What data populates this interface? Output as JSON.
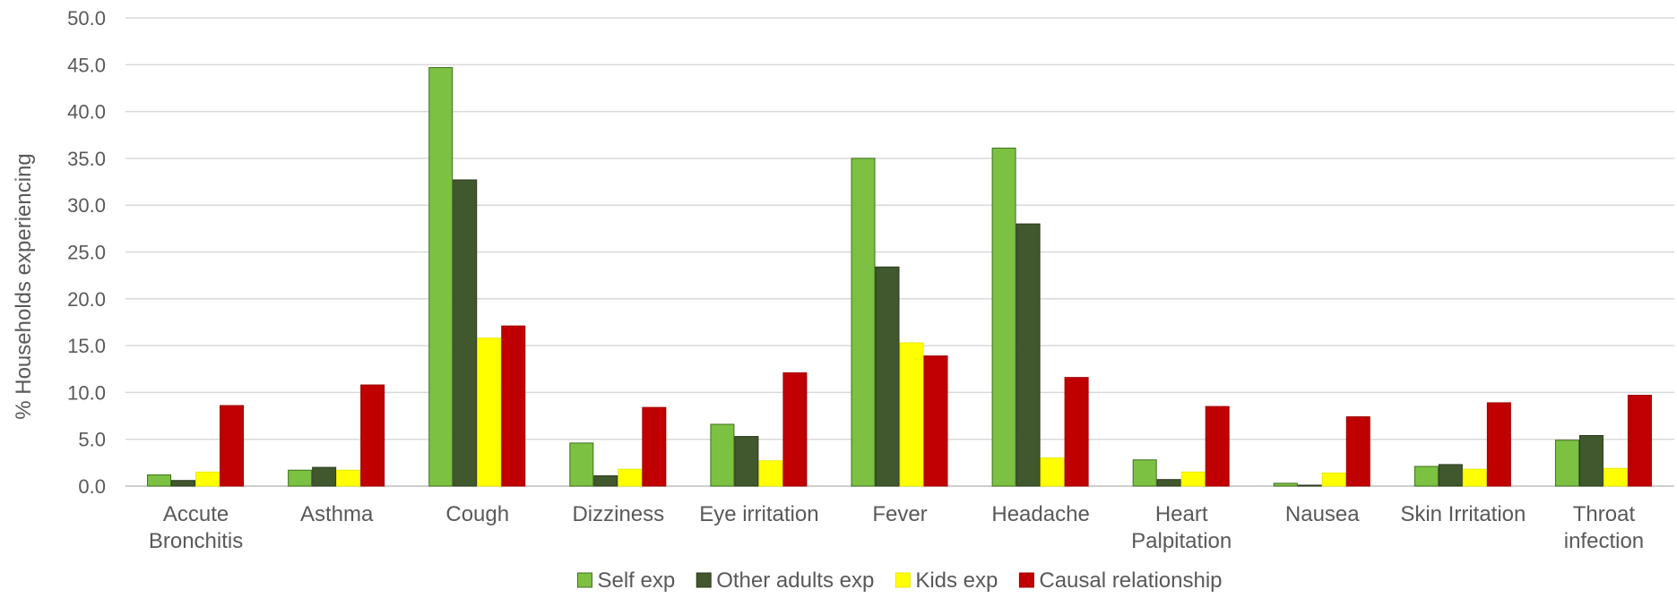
{
  "chart_data": {
    "type": "bar",
    "title": "",
    "xlabel": "",
    "ylabel": "% Households experiencing",
    "ylim": [
      0,
      50
    ],
    "y_ticks": [
      "0.0",
      "5.0",
      "10.0",
      "15.0",
      "20.0",
      "25.0",
      "30.0",
      "35.0",
      "40.0",
      "45.0",
      "50.0"
    ],
    "grid": true,
    "legend_position": "bottom",
    "categories": [
      [
        "Accute",
        "Bronchitis"
      ],
      [
        "Asthma"
      ],
      [
        "Cough"
      ],
      [
        "Dizziness"
      ],
      [
        "Eye irritation"
      ],
      [
        "Fever"
      ],
      [
        "Headache"
      ],
      [
        "Heart",
        "Palpitation"
      ],
      [
        "Nausea"
      ],
      [
        "Skin Irritation"
      ],
      [
        "Throat",
        "infection"
      ]
    ],
    "series": [
      {
        "name": "Self exp",
        "color": "#7cc142",
        "stroke": "#3f6e1e",
        "values": [
          1.2,
          1.7,
          44.7,
          4.6,
          6.6,
          35.0,
          36.1,
          2.8,
          0.3,
          2.1,
          4.9
        ]
      },
      {
        "name": "Other adults exp",
        "color": "#41572e",
        "stroke": "#2b3a1e",
        "values": [
          0.6,
          2.0,
          32.7,
          1.1,
          5.3,
          23.4,
          28.0,
          0.7,
          0.1,
          2.3,
          5.4
        ]
      },
      {
        "name": "Kids exp",
        "color": "#ffff00",
        "stroke": "#e8e800",
        "values": [
          1.5,
          1.7,
          15.8,
          1.8,
          2.7,
          15.3,
          3.0,
          1.5,
          1.4,
          1.8,
          1.9
        ]
      },
      {
        "name": "Causal relationship",
        "color": "#c00000",
        "stroke": "#a00000",
        "values": [
          8.6,
          10.8,
          17.1,
          8.4,
          12.1,
          13.9,
          11.6,
          8.5,
          7.4,
          8.9,
          9.7
        ]
      }
    ]
  }
}
